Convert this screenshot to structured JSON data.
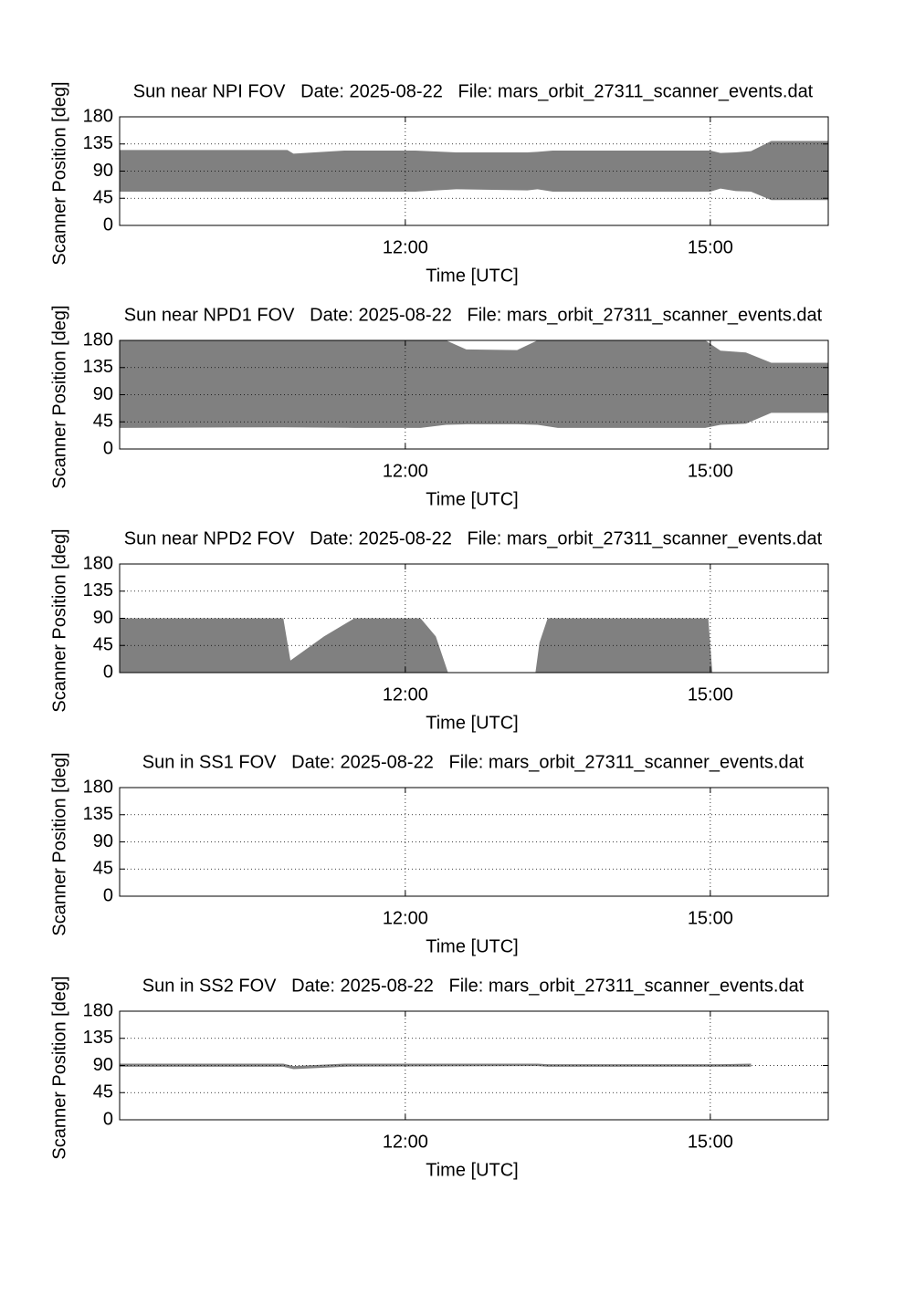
{
  "chart_data": [
    {
      "type": "band",
      "title": "Sun near NPI FOV   Date: 2025-08-22   File: mars_orbit_27311_scanner_events.dat",
      "xlabel": "Time [UTC]",
      "ylabel": "Scanner Position [deg]",
      "color": "#808080",
      "grid": true,
      "xlim": [
        9.19,
        16.16
      ],
      "ylim": [
        0,
        180
      ],
      "xticks": [
        {
          "value": 12,
          "label": "12:00"
        },
        {
          "value": 15,
          "label": "15:00"
        }
      ],
      "yticks": [
        0,
        45,
        90,
        135,
        180
      ],
      "x": [
        9.19,
        10.84,
        10.9,
        11.4,
        12.1,
        12.5,
        13.2,
        13.3,
        13.45,
        15.0,
        15.1,
        15.25,
        15.4,
        15.6,
        16.16
      ],
      "upper": [
        125,
        125,
        119,
        124,
        124,
        121,
        121,
        122,
        124,
        124,
        120,
        121,
        123,
        140,
        140
      ],
      "lower": [
        56,
        56,
        56,
        56,
        56,
        60,
        58,
        60,
        56,
        56,
        61,
        57,
        56,
        42,
        42
      ]
    },
    {
      "type": "band",
      "title": "Sun near NPD1 FOV   Date: 2025-08-22   File: mars_orbit_27311_scanner_events.dat",
      "xlabel": "Time [UTC]",
      "ylabel": "Scanner Position [deg]",
      "color": "#808080",
      "grid": true,
      "xlim": [
        9.19,
        16.16
      ],
      "ylim": [
        0,
        180
      ],
      "xticks": [
        {
          "value": 12,
          "label": "12:00"
        },
        {
          "value": 15,
          "label": "15:00"
        }
      ],
      "yticks": [
        0,
        45,
        90,
        135,
        180
      ],
      "x": [
        9.19,
        10.8,
        11.5,
        12.15,
        12.4,
        12.6,
        13.1,
        13.3,
        13.5,
        14.95,
        15.1,
        15.35,
        15.6,
        16.16
      ],
      "upper": [
        180,
        180,
        180,
        180,
        180,
        165,
        164,
        180,
        180,
        180,
        163,
        160,
        143,
        143
      ],
      "lower": [
        35,
        36,
        35,
        35,
        40,
        41,
        41,
        40,
        35,
        35,
        40,
        42,
        60,
        60
      ]
    },
    {
      "type": "band",
      "title": "Sun near NPD2 FOV   Date: 2025-08-22   File: mars_orbit_27311_scanner_events.dat",
      "xlabel": "Time [UTC]",
      "ylabel": "Scanner Position [deg]",
      "color": "#808080",
      "grid": true,
      "xlim": [
        9.19,
        16.16
      ],
      "ylim": [
        0,
        180
      ],
      "xticks": [
        {
          "value": 12,
          "label": "12:00"
        },
        {
          "value": 15,
          "label": "15:00"
        }
      ],
      "yticks": [
        0,
        45,
        90,
        135,
        180
      ],
      "x": [
        9.19,
        10.8,
        10.87,
        11.2,
        11.5,
        12.15,
        12.3,
        12.38,
        12.42,
        13.28,
        13.32,
        13.4,
        14.98,
        15.02,
        16.16
      ],
      "upper": [
        90,
        90,
        20,
        60,
        90,
        90,
        60,
        20,
        0,
        0,
        50,
        90,
        90,
        0,
        0
      ],
      "lower": [
        0,
        0,
        0,
        0,
        0,
        0,
        0,
        0,
        0,
        0,
        0,
        0,
        0,
        0,
        0
      ]
    },
    {
      "type": "band",
      "title": "Sun in SS1 FOV   Date: 2025-08-22   File: mars_orbit_27311_scanner_events.dat",
      "xlabel": "Time [UTC]",
      "ylabel": "Scanner Position [deg]",
      "color": "#808080",
      "grid": true,
      "xlim": [
        9.19,
        16.16
      ],
      "ylim": [
        0,
        180
      ],
      "xticks": [
        {
          "value": 12,
          "label": "12:00"
        },
        {
          "value": 15,
          "label": "15:00"
        }
      ],
      "yticks": [
        0,
        45,
        90,
        135,
        180
      ],
      "x": [],
      "upper": [],
      "lower": []
    },
    {
      "type": "band",
      "title": "Sun in SS2 FOV   Date: 2025-08-22   File: mars_orbit_27311_scanner_events.dat",
      "xlabel": "Time [UTC]",
      "ylabel": "Scanner Position [deg]",
      "color": "#808080",
      "grid": true,
      "xlim": [
        9.19,
        16.16
      ],
      "ylim": [
        0,
        180
      ],
      "xticks": [
        {
          "value": 12,
          "label": "12:00"
        },
        {
          "value": 15,
          "label": "15:00"
        }
      ],
      "yticks": [
        0,
        45,
        90,
        135,
        180
      ],
      "x": [
        9.19,
        10.8,
        10.9,
        11.4,
        13.3,
        13.4,
        15.1,
        15.4
      ],
      "upper": [
        93,
        93,
        89,
        93,
        93,
        92,
        92,
        93
      ],
      "lower": [
        88,
        88,
        84,
        88,
        89,
        88,
        88,
        88
      ]
    }
  ]
}
